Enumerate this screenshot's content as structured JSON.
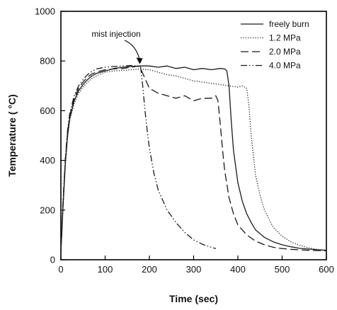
{
  "chart_data": {
    "type": "line",
    "xlabel": "Time (sec)",
    "ylabel": "Temperature ( °C)",
    "xlim": [
      0,
      600
    ],
    "ylim": [
      0,
      1000
    ],
    "x_ticks": [
      0,
      100,
      200,
      300,
      400,
      500,
      600
    ],
    "y_ticks": [
      0,
      200,
      400,
      600,
      800,
      1000
    ],
    "grid": false,
    "legend_position": "top-right",
    "annotation": {
      "text": "mist injection",
      "x": 180,
      "y": 785
    },
    "series": [
      {
        "name": "freely burn",
        "style": "solid",
        "x": [
          0,
          5,
          10,
          15,
          20,
          30,
          40,
          50,
          60,
          70,
          80,
          90,
          100,
          110,
          120,
          140,
          160,
          180,
          200,
          220,
          240,
          260,
          280,
          300,
          320,
          340,
          360,
          370,
          375,
          380,
          385,
          390,
          400,
          410,
          420,
          430,
          440,
          460,
          480,
          500,
          520,
          540,
          560,
          580,
          600
        ],
        "y": [
          30,
          220,
          390,
          500,
          570,
          640,
          680,
          705,
          725,
          740,
          750,
          755,
          760,
          765,
          770,
          775,
          778,
          780,
          780,
          775,
          780,
          770,
          775,
          765,
          770,
          765,
          770,
          768,
          760,
          700,
          560,
          440,
          310,
          235,
          185,
          150,
          120,
          90,
          72,
          60,
          52,
          46,
          43,
          40,
          38
        ]
      },
      {
        "name": "1.2 MPa",
        "style": "dotted",
        "x": [
          0,
          5,
          10,
          15,
          20,
          30,
          40,
          50,
          60,
          70,
          80,
          90,
          100,
          120,
          140,
          160,
          180,
          200,
          220,
          240,
          260,
          280,
          300,
          320,
          340,
          360,
          380,
          400,
          410,
          420,
          425,
          430,
          435,
          440,
          450,
          460,
          480,
          500,
          520,
          540,
          560,
          580,
          600
        ],
        "y": [
          30,
          210,
          380,
          490,
          560,
          630,
          670,
          695,
          715,
          730,
          740,
          748,
          755,
          760,
          762,
          765,
          768,
          765,
          755,
          745,
          740,
          730,
          720,
          715,
          710,
          705,
          700,
          695,
          700,
          690,
          620,
          500,
          420,
          340,
          260,
          200,
          130,
          95,
          72,
          58,
          48,
          42,
          38
        ]
      },
      {
        "name": "2.0 MPa",
        "style": "dashed",
        "x": [
          0,
          5,
          10,
          15,
          20,
          30,
          40,
          50,
          60,
          70,
          80,
          100,
          120,
          140,
          160,
          175,
          180,
          190,
          200,
          220,
          240,
          260,
          280,
          300,
          320,
          340,
          350,
          355,
          360,
          365,
          370,
          380,
          390,
          400,
          420,
          440,
          460,
          480,
          500,
          520,
          540,
          560,
          580,
          600
        ],
        "y": [
          30,
          230,
          400,
          510,
          580,
          650,
          690,
          715,
          735,
          748,
          755,
          765,
          768,
          770,
          775,
          780,
          770,
          730,
          690,
          670,
          660,
          650,
          660,
          640,
          650,
          650,
          660,
          640,
          550,
          450,
          360,
          250,
          185,
          140,
          100,
          75,
          60,
          50,
          45,
          42,
          40,
          38,
          37,
          36
        ]
      },
      {
        "name": "4.0 MPa",
        "style": "dashdotdot",
        "x": [
          0,
          5,
          10,
          15,
          20,
          30,
          40,
          50,
          60,
          70,
          80,
          100,
          120,
          140,
          160,
          180,
          185,
          190,
          195,
          200,
          210,
          220,
          240,
          260,
          280,
          300,
          320,
          340,
          350
        ],
        "y": [
          30,
          240,
          410,
          520,
          590,
          660,
          700,
          725,
          745,
          758,
          768,
          775,
          778,
          780,
          782,
          778,
          700,
          600,
          520,
          450,
          350,
          280,
          200,
          150,
          110,
          80,
          62,
          50,
          45
        ]
      }
    ]
  }
}
